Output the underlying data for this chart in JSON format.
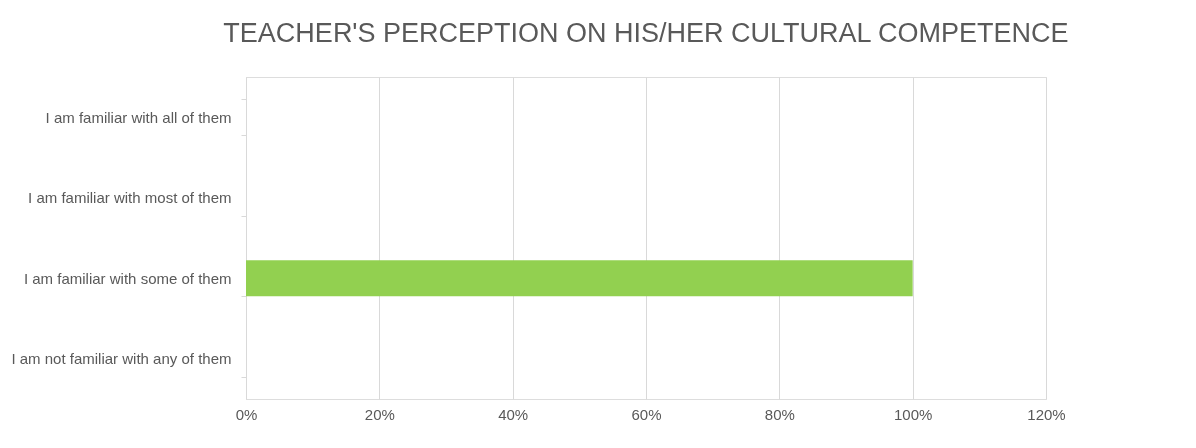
{
  "chart_data": {
    "type": "bar",
    "orientation": "horizontal",
    "title": "TEACHER'S PERCEPTION ON HIS/HER CULTURAL COMPETENCE",
    "categories": [
      "I am familiar with all of them",
      "I am familiar with most of them",
      "I am familiar with some of them",
      "I am not familiar with any of them"
    ],
    "values": [
      0,
      0,
      100,
      0
    ],
    "color": "#92d050",
    "xlim": [
      0,
      120
    ],
    "xticks": [
      {
        "value": 0,
        "label": "0%"
      },
      {
        "value": 20,
        "label": "20%"
      },
      {
        "value": 40,
        "label": "40%"
      },
      {
        "value": 60,
        "label": "60%"
      },
      {
        "value": 80,
        "label": "80%"
      },
      {
        "value": 100,
        "label": "100%"
      },
      {
        "value": 120,
        "label": "120%"
      }
    ],
    "grid": "x"
  }
}
